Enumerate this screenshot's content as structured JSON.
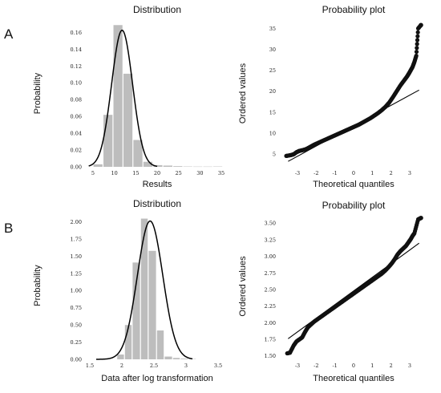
{
  "panels": [
    {
      "id": "A",
      "letter": "A"
    },
    {
      "id": "B",
      "letter": "B"
    }
  ],
  "chart_data": [
    {
      "type": "bar",
      "panel": "A",
      "subtype": "histogram with fitted normal curve",
      "title": "Distribution",
      "xlabel": "Results",
      "ylabel": "Probability",
      "xlim": [
        3.5,
        36.5
      ],
      "ylim": [
        0,
        0.175
      ],
      "xticks": [
        5,
        10,
        15,
        20,
        25,
        30,
        35
      ],
      "yticks": [
        0.0,
        0.02,
        0.04,
        0.06,
        0.08,
        0.1,
        0.12,
        0.14,
        0.16
      ],
      "ytick_decimals": 2,
      "bins": [
        {
          "x0": 5.0,
          "x1": 7.33,
          "value": 0.003
        },
        {
          "x0": 7.33,
          "x1": 9.67,
          "value": 0.062
        },
        {
          "x0": 9.67,
          "x1": 12.0,
          "value": 0.169
        },
        {
          "x0": 12.0,
          "x1": 14.33,
          "value": 0.111
        },
        {
          "x0": 14.33,
          "x1": 16.67,
          "value": 0.032
        },
        {
          "x0": 16.67,
          "x1": 19.0,
          "value": 0.006
        },
        {
          "x0": 19.0,
          "x1": 21.33,
          "value": 0.002
        },
        {
          "x0": 21.33,
          "x1": 23.67,
          "value": 0.0015
        },
        {
          "x0": 23.67,
          "x1": 26.0,
          "value": 0.0008
        },
        {
          "x0": 26.0,
          "x1": 28.33,
          "value": 0.0004
        },
        {
          "x0": 28.33,
          "x1": 30.67,
          "value": 0.0003
        },
        {
          "x0": 30.67,
          "x1": 33.0,
          "value": 0.0003
        },
        {
          "x0": 33.0,
          "x1": 35.33,
          "value": 0.0004
        }
      ],
      "fit_curve": {
        "mean": 11.8,
        "sd": 2.45,
        "x_start": 4.0,
        "x_end": 20.0
      },
      "bar_color": "#bdbdbd",
      "curve_color": "#000000"
    },
    {
      "type": "scatter",
      "panel": "A",
      "subtype": "probability plot",
      "title": "Probability plot",
      "xlabel": "Theoretical quantiles",
      "ylabel": "Ordered values",
      "xlim": [
        -3.9,
        3.9
      ],
      "ylim": [
        2.0,
        37.0
      ],
      "xticks": [
        -3,
        -2,
        -1,
        0,
        1,
        2,
        3
      ],
      "yticks": [
        5,
        10,
        15,
        20,
        25,
        30,
        35
      ],
      "ytick_decimals": 0,
      "fit_line": {
        "x": [
          -3.5,
          3.5
        ],
        "y": [
          3.3,
          20.3
        ]
      },
      "points": [
        [
          -3.6,
          4.6
        ],
        [
          -3.35,
          4.8
        ],
        [
          -3.2,
          5.0
        ],
        [
          -3.05,
          5.5
        ],
        [
          -2.9,
          5.8
        ],
        [
          -2.7,
          6.0
        ],
        [
          -2.5,
          6.3
        ],
        [
          -2.3,
          6.8
        ],
        [
          -2.1,
          7.3
        ],
        [
          -1.9,
          7.7
        ],
        [
          -1.7,
          8.1
        ],
        [
          -1.5,
          8.5
        ],
        [
          -1.3,
          8.9
        ],
        [
          -1.1,
          9.3
        ],
        [
          -0.9,
          9.7
        ],
        [
          -0.7,
          10.1
        ],
        [
          -0.5,
          10.5
        ],
        [
          -0.3,
          10.9
        ],
        [
          -0.1,
          11.3
        ],
        [
          0.1,
          11.7
        ],
        [
          0.3,
          12.1
        ],
        [
          0.5,
          12.6
        ],
        [
          0.7,
          13.1
        ],
        [
          0.9,
          13.6
        ],
        [
          1.1,
          14.2
        ],
        [
          1.3,
          14.8
        ],
        [
          1.5,
          15.5
        ],
        [
          1.7,
          16.3
        ],
        [
          1.9,
          17.3
        ],
        [
          2.1,
          18.6
        ],
        [
          2.3,
          20.0
        ],
        [
          2.5,
          21.4
        ],
        [
          2.7,
          22.6
        ],
        [
          2.85,
          23.5
        ],
        [
          2.95,
          24.2
        ],
        [
          3.05,
          25.0
        ],
        [
          3.15,
          25.8
        ],
        [
          3.25,
          27.0
        ],
        [
          3.35,
          28.5
        ],
        [
          3.45,
          35.0
        ],
        [
          3.6,
          35.8
        ]
      ],
      "point_color": "#111111"
    },
    {
      "type": "bar",
      "panel": "B",
      "subtype": "histogram with fitted normal curve",
      "title": "Distribution",
      "xlabel": "Data after log transformation",
      "ylabel": "Probability",
      "xlim": [
        1.45,
        3.65
      ],
      "ylim": [
        0,
        2.15
      ],
      "xticks": [
        1.5,
        2.0,
        2.5,
        3.0,
        3.5
      ],
      "yticks": [
        0.0,
        0.25,
        0.5,
        0.75,
        1.0,
        1.25,
        1.5,
        1.75,
        2.0
      ],
      "ytick_decimals": 2,
      "bins": [
        {
          "x0": 1.92,
          "x1": 2.04,
          "value": 0.07
        },
        {
          "x0": 2.04,
          "x1": 2.16,
          "value": 0.5
        },
        {
          "x0": 2.16,
          "x1": 2.29,
          "value": 1.41
        },
        {
          "x0": 2.29,
          "x1": 2.41,
          "value": 2.05
        },
        {
          "x0": 2.41,
          "x1": 2.54,
          "value": 1.58
        },
        {
          "x0": 2.54,
          "x1": 2.66,
          "value": 0.42
        },
        {
          "x0": 2.66,
          "x1": 2.79,
          "value": 0.04
        },
        {
          "x0": 2.79,
          "x1": 2.91,
          "value": 0.02
        },
        {
          "x0": 2.91,
          "x1": 3.04,
          "value": 0.01
        },
        {
          "x0": 3.04,
          "x1": 3.16,
          "value": 0.005
        }
      ],
      "fit_curve": {
        "mean": 2.44,
        "sd": 0.198,
        "x_start": 1.6,
        "x_end": 3.1
      },
      "bar_color": "#bdbdbd",
      "curve_color": "#000000"
    },
    {
      "type": "scatter",
      "panel": "B",
      "subtype": "probability plot",
      "title": "Probability plot",
      "xlabel": "Theoretical quantiles",
      "ylabel": "Ordered values",
      "xlim": [
        -3.9,
        3.9
      ],
      "ylim": [
        1.45,
        3.65
      ],
      "xticks": [
        -3,
        -2,
        -1,
        0,
        1,
        2,
        3
      ],
      "yticks": [
        1.5,
        1.75,
        2.0,
        2.25,
        2.5,
        2.75,
        3.0,
        3.25,
        3.5
      ],
      "ytick_decimals": 2,
      "fit_line": {
        "x": [
          -3.5,
          3.5
        ],
        "y": [
          1.76,
          3.2
        ]
      },
      "points": [
        [
          -3.55,
          1.54
        ],
        [
          -3.4,
          1.55
        ],
        [
          -3.2,
          1.66
        ],
        [
          -3.05,
          1.72
        ],
        [
          -2.9,
          1.75
        ],
        [
          -2.75,
          1.78
        ],
        [
          -2.6,
          1.86
        ],
        [
          -2.45,
          1.93
        ],
        [
          -2.3,
          1.97
        ],
        [
          -2.1,
          2.02
        ],
        [
          -1.9,
          2.06
        ],
        [
          -1.7,
          2.1
        ],
        [
          -1.5,
          2.14
        ],
        [
          -1.3,
          2.18
        ],
        [
          -1.1,
          2.22
        ],
        [
          -0.9,
          2.26
        ],
        [
          -0.7,
          2.3
        ],
        [
          -0.5,
          2.34
        ],
        [
          -0.3,
          2.38
        ],
        [
          -0.1,
          2.42
        ],
        [
          0.1,
          2.46
        ],
        [
          0.3,
          2.5
        ],
        [
          0.5,
          2.54
        ],
        [
          0.7,
          2.58
        ],
        [
          0.9,
          2.62
        ],
        [
          1.1,
          2.66
        ],
        [
          1.3,
          2.7
        ],
        [
          1.5,
          2.74
        ],
        [
          1.7,
          2.79
        ],
        [
          1.9,
          2.85
        ],
        [
          2.05,
          2.9
        ],
        [
          2.2,
          2.96
        ],
        [
          2.35,
          3.03
        ],
        [
          2.5,
          3.08
        ],
        [
          2.65,
          3.12
        ],
        [
          2.8,
          3.16
        ],
        [
          2.95,
          3.22
        ],
        [
          3.05,
          3.26
        ],
        [
          3.15,
          3.31
        ],
        [
          3.25,
          3.35
        ],
        [
          3.45,
          3.56
        ],
        [
          3.6,
          3.58
        ]
      ],
      "point_color": "#111111"
    }
  ]
}
